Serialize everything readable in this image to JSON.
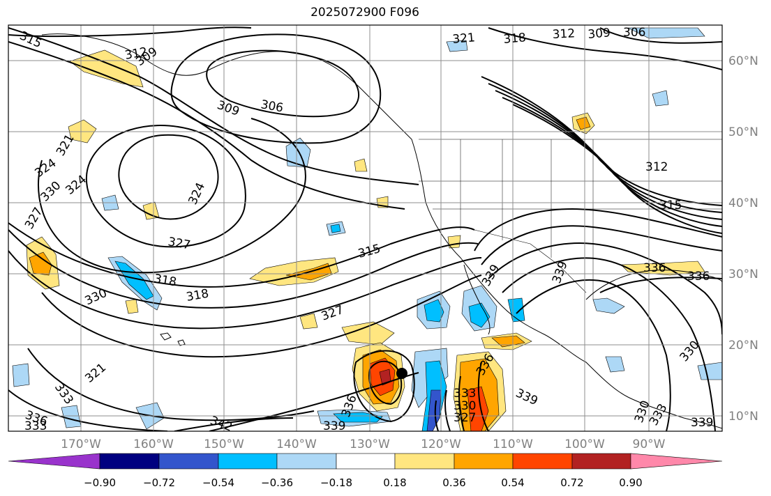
{
  "title": "2025072900 F096",
  "longitude_labels": [
    "170°W",
    "160°W",
    "150°W",
    "140°W",
    "130°W",
    "120°W",
    "110°W",
    "100°W",
    "90°W"
  ],
  "latitude_labels": [
    "60°N",
    "50°N",
    "40°N",
    "30°N",
    "20°N",
    "10°N"
  ],
  "contour_labels": [
    "315",
    "312",
    "309",
    "306",
    "309",
    "321",
    "318",
    "312",
    "309",
    "306",
    "324",
    "321",
    "324",
    "330",
    "327",
    "330",
    "324",
    "327",
    "318",
    "318",
    "330",
    "315",
    "327",
    "336",
    "339",
    "333",
    "333",
    "330",
    "327",
    "336",
    "339",
    "342",
    "336",
    "339",
    "333",
    "336",
    "312",
    "315",
    "336",
    "339",
    "330",
    "330",
    "333",
    "339",
    "321"
  ],
  "colorbar": {
    "tick_labels": [
      "−0.90",
      "−0.72",
      "−0.54",
      "−0.36",
      "−0.18",
      "0.18",
      "0.36",
      "0.54",
      "0.72",
      "0.90"
    ],
    "colors": [
      "#9933cc",
      "#000080",
      "#3355cc",
      "#00bfff",
      "#add8f6",
      "#ffffff",
      "#ffe680",
      "#ffa500",
      "#ff4500",
      "#b22222",
      "#ff88aa"
    ]
  },
  "colors": {
    "contour": "#000000",
    "grid": "#8c8c8c",
    "axis_label": "#808080",
    "marker": "#000000"
  }
}
